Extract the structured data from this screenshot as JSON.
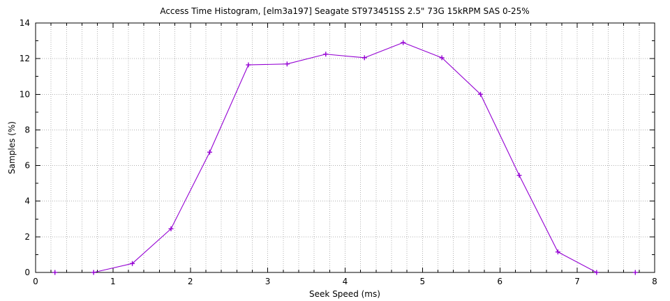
{
  "chart_data": {
    "type": "line",
    "title": "Access Time Histogram, [elm3a197] Seagate ST973451SS 2.5\" 73G 15kRPM SAS 0-25%",
    "xlabel": "Seek Speed (ms)",
    "ylabel": "Samples (%)",
    "xlim": [
      0,
      8
    ],
    "ylim": [
      0,
      14
    ],
    "x_major_ticks": [
      0,
      1,
      2,
      3,
      4,
      5,
      6,
      7,
      8
    ],
    "y_major_ticks": [
      0,
      2,
      4,
      6,
      8,
      10,
      12,
      14
    ],
    "x_minor_step": 0.2,
    "y_minor_step": 1,
    "grid": {
      "vertical_step": 0.2,
      "horizontal_at": [
        2,
        4,
        6,
        8,
        10,
        12
      ],
      "style": "dotted",
      "color": "#b0b0b0"
    },
    "legend_position": "none",
    "series": [
      {
        "name": "samples",
        "color": "#9400d3",
        "marker": "plus",
        "x": [
          0.25,
          0.75,
          1.25,
          1.75,
          2.25,
          2.75,
          3.25,
          3.75,
          4.25,
          4.75,
          5.25,
          5.75,
          6.25,
          6.75,
          7.25,
          7.75
        ],
        "y": [
          0,
          0,
          0.5,
          2.45,
          6.75,
          11.65,
          11.7,
          12.25,
          12.05,
          12.9,
          12.05,
          10.0,
          5.45,
          1.15,
          0,
          0
        ],
        "line_connect_x_range": [
          0.75,
          7.25
        ]
      }
    ]
  },
  "colors": {
    "background": "#ffffff",
    "border": "#000000",
    "grid": "#b0b0b0",
    "series": "#9400d3",
    "text": "#000000"
  }
}
